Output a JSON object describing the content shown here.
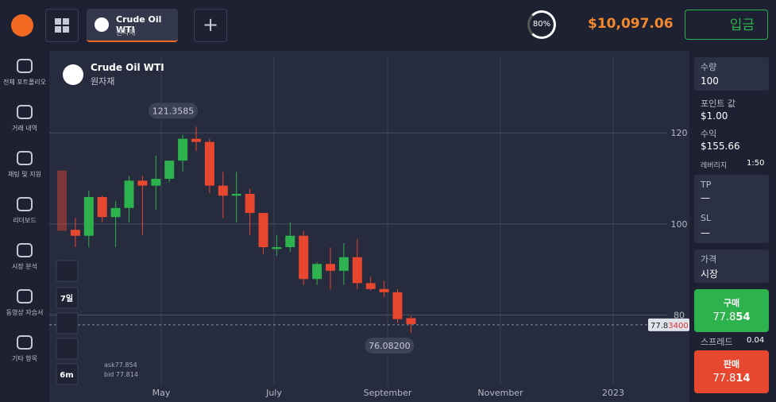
{
  "header": {
    "asset_name": "Crude Oil WTI",
    "asset_type": "원자재",
    "payout": "80%",
    "balance": "$10,097.06",
    "deposit": "입금"
  },
  "sidebar": [
    "전체 포트폴리오",
    "거래 내역",
    "채팅 및 지원",
    "리더보드",
    "시장 분석",
    "동영상 자습서",
    "기타 항목"
  ],
  "chart_data": {
    "type": "candlestick",
    "title": "Crude Oil WTI",
    "subtitle": "원자재",
    "up_color": "#2db24d",
    "down_color": "#e8472f",
    "candles": [
      {
        "open": 111.7,
        "high": 111.7,
        "low": 98.5,
        "close": 98.5
      },
      {
        "open": 98.7,
        "high": 101.3,
        "low": 94.9,
        "close": 97.4
      },
      {
        "open": 97.4,
        "high": 107.3,
        "low": 94.9,
        "close": 105.9
      },
      {
        "open": 105.9,
        "high": 106.2,
        "low": 100.4,
        "close": 101.5
      },
      {
        "open": 101.5,
        "high": 105.0,
        "low": 94.9,
        "close": 103.5
      },
      {
        "open": 103.5,
        "high": 110.5,
        "low": 100.4,
        "close": 109.5
      },
      {
        "open": 109.5,
        "high": 110.5,
        "low": 97.6,
        "close": 108.4
      },
      {
        "open": 108.4,
        "high": 115.0,
        "low": 103.1,
        "close": 109.9
      },
      {
        "open": 109.9,
        "high": 113.9,
        "low": 109.2,
        "close": 113.9
      },
      {
        "open": 113.9,
        "high": 119.6,
        "low": 111.4,
        "close": 118.7
      },
      {
        "open": 118.7,
        "high": 121.3585,
        "low": 116.0,
        "close": 118.0
      },
      {
        "open": 118.0,
        "high": 118.7,
        "low": 106.8,
        "close": 108.4
      },
      {
        "open": 108.4,
        "high": 111.4,
        "low": 101.3,
        "close": 106.2
      },
      {
        "open": 106.2,
        "high": 111.4,
        "low": 100.4,
        "close": 106.6
      },
      {
        "open": 106.6,
        "high": 107.7,
        "low": 97.6,
        "close": 102.4
      },
      {
        "open": 102.4,
        "high": 102.4,
        "low": 93.4,
        "close": 94.9
      },
      {
        "open": 94.5,
        "high": 97.6,
        "low": 93.0,
        "close": 94.9
      },
      {
        "open": 94.9,
        "high": 100.4,
        "low": 93.9,
        "close": 97.4
      },
      {
        "open": 97.4,
        "high": 98.5,
        "low": 86.6,
        "close": 87.9
      },
      {
        "open": 87.9,
        "high": 91.6,
        "low": 86.6,
        "close": 91.2
      },
      {
        "open": 91.2,
        "high": 94.9,
        "low": 85.7,
        "close": 89.7
      },
      {
        "open": 89.7,
        "high": 95.8,
        "low": 86.6,
        "close": 92.7
      },
      {
        "open": 92.7,
        "high": 96.7,
        "low": 85.7,
        "close": 87.0
      },
      {
        "open": 87.0,
        "high": 88.4,
        "low": 85.3,
        "close": 85.7
      },
      {
        "open": 85.7,
        "high": 87.5,
        "low": 83.9,
        "close": 85.0
      },
      {
        "open": 85.0,
        "high": 85.7,
        "low": 78.3,
        "close": 79.1
      },
      {
        "open": 79.3,
        "high": 79.8,
        "low": 76.082,
        "close": 78.0
      }
    ],
    "ylim": [
      60.9,
      138.0
    ],
    "yticks": [
      80,
      100,
      120
    ],
    "x_labels": [
      "May",
      "July",
      "September",
      "November",
      "2023"
    ],
    "max_label": "121.3585",
    "min_label": "76.08200",
    "current_price": 77.834,
    "current_price_label": [
      "77.8",
      "3400"
    ],
    "ask": "ask77.854",
    "bid": "bid 77.814",
    "tools": [
      "7일",
      "6m"
    ]
  },
  "panel": {
    "amount_label": "수량",
    "amount": "100",
    "point_value_label": "포인트 값",
    "point_value": "$1.00",
    "profit_label": "수익",
    "profit": "$155.66",
    "leverage_label": "레버리지",
    "leverage": "1:50",
    "tp_label": "TP",
    "tp": "—",
    "sl_label": "SL",
    "sl": "—",
    "price_label": "가격",
    "price": "시장",
    "buy_label": "구매",
    "buy_price": [
      "77.8",
      "54"
    ],
    "spread_label": "스프레드",
    "spread": "0.04",
    "sell_label": "판매",
    "sell_price": [
      "77.8",
      "14"
    ]
  }
}
